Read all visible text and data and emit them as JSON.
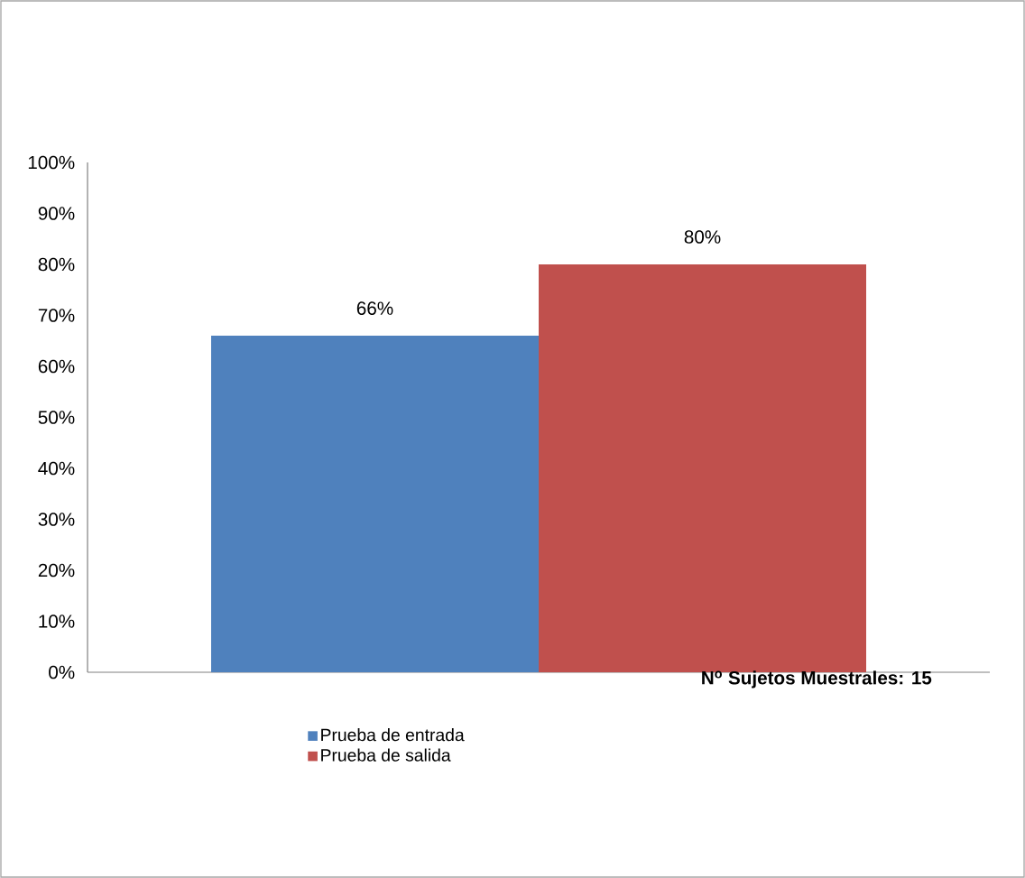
{
  "chart_data": {
    "type": "bar",
    "categories": [
      null
    ],
    "series": [
      {
        "name": "Prueba de entrada",
        "color": "#4f81bd",
        "values": [
          66
        ],
        "value_labels": [
          "66%"
        ]
      },
      {
        "name": "Prueba de salida",
        "color": "#c0504d",
        "values": [
          80
        ],
        "value_labels": [
          "80%"
        ]
      }
    ],
    "ylim": [
      0,
      100
    ],
    "yticks": [
      {
        "value": 0,
        "label": "0%"
      },
      {
        "value": 10,
        "label": "10%"
      },
      {
        "value": 20,
        "label": "20%"
      },
      {
        "value": 30,
        "label": "30%"
      },
      {
        "value": 40,
        "label": "40%"
      },
      {
        "value": 50,
        "label": "50%"
      },
      {
        "value": 60,
        "label": "60%"
      },
      {
        "value": 70,
        "label": "70%"
      },
      {
        "value": 80,
        "label": "80%"
      },
      {
        "value": 90,
        "label": "90%"
      },
      {
        "value": 100,
        "label": "100%"
      }
    ],
    "legend": "bottom",
    "annotations": [
      "**N$^{o}$ Sujetos  Muestrales: 15**"
    ]
  }
}
